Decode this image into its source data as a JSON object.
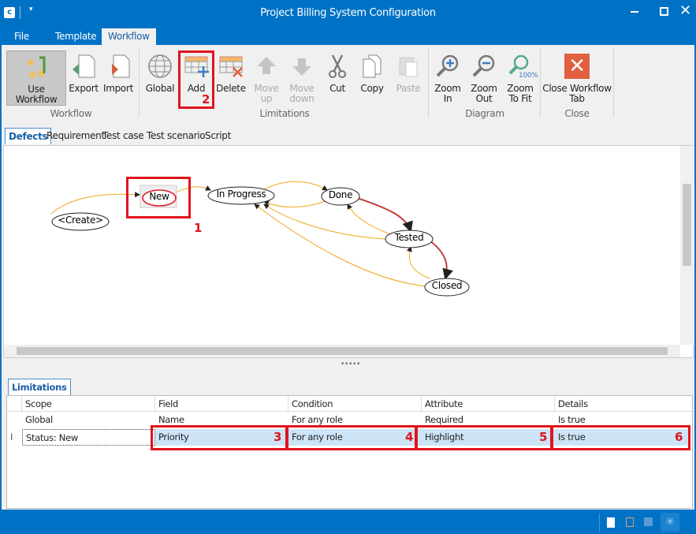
{
  "window": {
    "title": "Project Billing System Configuration",
    "app_icon": "app-logo-icon",
    "qat_icon": "dropdown-arrow-icon"
  },
  "menu": {
    "tabs": [
      {
        "label": "File"
      },
      {
        "label": "Template"
      },
      {
        "label": "Workflow",
        "active": true
      }
    ]
  },
  "ribbon": {
    "groups": [
      {
        "label": "Workflow"
      },
      {
        "label": "Limitations"
      },
      {
        "label": "Diagram"
      },
      {
        "label": "Close"
      }
    ],
    "buttons": {
      "use_workflow": "Use Workflow",
      "export": "Export",
      "import": "Import",
      "global": "Global",
      "add": "Add",
      "delete": "Delete",
      "move_up": "Move up",
      "move_down": "Move down",
      "cut": "Cut",
      "copy": "Copy",
      "paste": "Paste",
      "zoom_in": "Zoom In",
      "zoom_out": "Zoom Out",
      "zoom_fit": "Zoom To Fit",
      "zoom_fit_badge": "100%",
      "close_tab": "Close Workflow Tab"
    }
  },
  "doc_tabs": [
    {
      "label": "Defects",
      "active": true
    },
    {
      "label": "Requirement"
    },
    {
      "label": "Test case"
    },
    {
      "label": "Test scenario"
    },
    {
      "label": "Script"
    }
  ],
  "diagram": {
    "nodes": {
      "create": "<Create>",
      "new": "New",
      "in_progress": "In Progress",
      "done": "Done",
      "tested": "Tested",
      "closed": "Closed"
    }
  },
  "annotations": {
    "n1": "1",
    "n2": "2",
    "n3": "3",
    "n4": "4",
    "n5": "5",
    "n6": "6"
  },
  "limitations": {
    "tab": "Limitations",
    "columns": [
      "Scope",
      "Field",
      "Condition",
      "Attribute",
      "Details"
    ],
    "rows": [
      [
        "Global",
        "Name",
        "For any role",
        "Required",
        "Is true"
      ],
      [
        "Status: New",
        "Priority",
        "For any role",
        "Highlight",
        "Is true"
      ]
    ]
  },
  "colors": {
    "accent": "#0072c6",
    "highlight": "#cde4f7",
    "annotation": "#e0141e"
  }
}
